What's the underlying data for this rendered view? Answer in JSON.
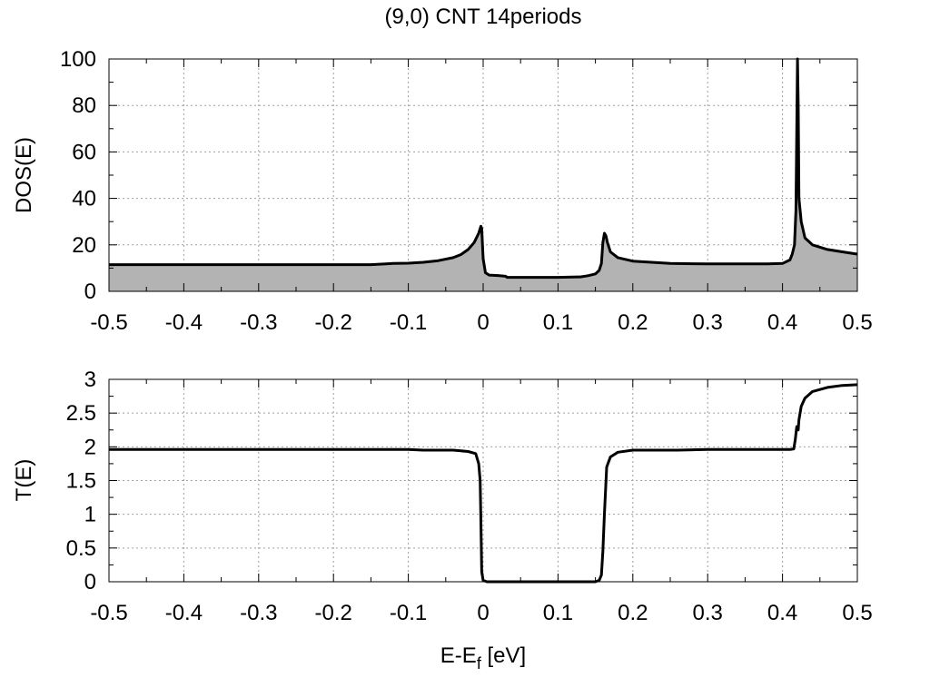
{
  "title": "(9,0) CNT 14periods",
  "chart_data": [
    {
      "id": "dos",
      "type": "area",
      "ylabel": "DOS(E)",
      "xlim": [
        -0.5,
        0.5
      ],
      "ylim": [
        0,
        100
      ],
      "xticks": [
        "-0.5",
        "-0.4",
        "-0.3",
        "-0.2",
        "-0.1",
        "0",
        "0.1",
        "0.2",
        "0.3",
        "0.4",
        "0.5"
      ],
      "yticks": [
        "0",
        "20",
        "40",
        "60",
        "80",
        "100"
      ],
      "grid": true,
      "line_color": "#000000",
      "fill_color": "#b3b3b3",
      "series": [
        {
          "x": [
            -0.5,
            -0.4,
            -0.3,
            -0.2,
            -0.15,
            -0.13,
            -0.12,
            -0.1,
            -0.08,
            -0.06,
            -0.04,
            -0.03,
            -0.02,
            -0.012,
            -0.006,
            -0.003,
            -0.002,
            0.0,
            0.003,
            0.008,
            0.02,
            0.03,
            0.032,
            0.04,
            0.06,
            0.1,
            0.13,
            0.14,
            0.15,
            0.155,
            0.158,
            0.16,
            0.162,
            0.164,
            0.166,
            0.17,
            0.18,
            0.2,
            0.25,
            0.3,
            0.35,
            0.38,
            0.4,
            0.41,
            0.413,
            0.416,
            0.418,
            0.42,
            0.421,
            0.422,
            0.425,
            0.43,
            0.44,
            0.46,
            0.48,
            0.5
          ],
          "y": [
            11.5,
            11.5,
            11.5,
            11.5,
            11.5,
            11.8,
            12.0,
            12.1,
            12.5,
            13.2,
            14.5,
            15.8,
            18.0,
            21.0,
            25.0,
            28.0,
            27.0,
            14.0,
            8.0,
            7.0,
            6.8,
            6.5,
            6.0,
            6.0,
            6.0,
            6.0,
            6.2,
            6.7,
            7.5,
            9.0,
            12.0,
            21.0,
            25.0,
            24.0,
            21.0,
            17.0,
            14.5,
            13.0,
            12.0,
            11.8,
            11.8,
            11.8,
            12.0,
            13.5,
            16.0,
            20.0,
            35.0,
            100.0,
            80.0,
            40.0,
            30.0,
            23.0,
            20.0,
            18.0,
            17.0,
            16.0
          ]
        }
      ]
    },
    {
      "id": "transmission",
      "type": "line",
      "ylabel": "T(E)",
      "xlabel_main": "E-E",
      "xlabel_sub": "f",
      "xlabel_tail": " [eV]",
      "xlim": [
        -0.5,
        0.5
      ],
      "ylim": [
        0,
        3
      ],
      "xticks": [
        "-0.5",
        "-0.4",
        "-0.3",
        "-0.2",
        "-0.1",
        "0",
        "0.1",
        "0.2",
        "0.3",
        "0.4",
        "0.5"
      ],
      "yticks": [
        "0",
        "0.5",
        "1",
        "1.5",
        "2",
        "2.5",
        "3"
      ],
      "grid": true,
      "line_color": "#000000",
      "series": [
        {
          "x": [
            -0.5,
            -0.4,
            -0.2,
            -0.1,
            -0.08,
            -0.04,
            -0.02,
            -0.01,
            -0.006,
            -0.004,
            -0.003,
            -0.002,
            0.0,
            0.005,
            0.01,
            0.05,
            0.1,
            0.15,
            0.155,
            0.158,
            0.16,
            0.162,
            0.165,
            0.17,
            0.18,
            0.2,
            0.26,
            0.3,
            0.4,
            0.41,
            0.415,
            0.417,
            0.419,
            0.42,
            0.421,
            0.422,
            0.425,
            0.43,
            0.44,
            0.46,
            0.48,
            0.5
          ],
          "y": [
            1.96,
            1.96,
            1.96,
            1.96,
            1.95,
            1.95,
            1.93,
            1.9,
            1.75,
            1.5,
            0.9,
            0.15,
            0.02,
            0.0,
            0.0,
            0.0,
            0.0,
            0.0,
            0.02,
            0.1,
            0.45,
            1.0,
            1.7,
            1.85,
            1.92,
            1.95,
            1.95,
            1.96,
            1.96,
            1.96,
            1.97,
            2.1,
            2.3,
            2.25,
            2.25,
            2.4,
            2.6,
            2.72,
            2.82,
            2.88,
            2.91,
            2.92
          ]
        }
      ]
    }
  ]
}
